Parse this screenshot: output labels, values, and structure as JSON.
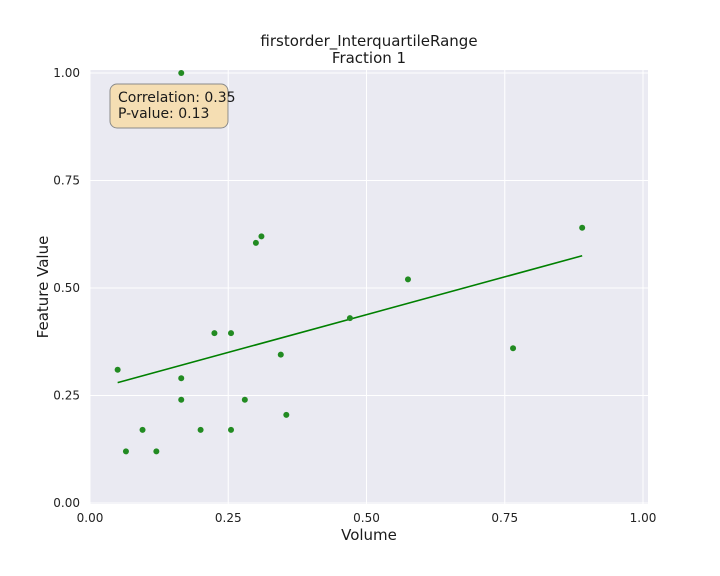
{
  "chart_data": {
    "type": "scatter",
    "title": "firstorder_InterquartileRange",
    "subtitle": "Fraction 1",
    "xlabel": "Volume",
    "ylabel": "Feature Value",
    "xlim": [
      0.0,
      1.0
    ],
    "ylim": [
      0.0,
      1.0
    ],
    "x_ticks": [
      "0.00",
      "0.25",
      "0.50",
      "0.75",
      "1.00"
    ],
    "y_ticks": [
      "0.00",
      "0.25",
      "0.50",
      "0.75",
      "1.00"
    ],
    "grid": true,
    "point_color": "#228B22",
    "line_color": "#008000",
    "background_color": "#EAEAF2",
    "points": [
      {
        "x": 0.05,
        "y": 0.31
      },
      {
        "x": 0.065,
        "y": 0.12
      },
      {
        "x": 0.095,
        "y": 0.17
      },
      {
        "x": 0.12,
        "y": 0.12
      },
      {
        "x": 0.165,
        "y": 1.0
      },
      {
        "x": 0.165,
        "y": 0.29
      },
      {
        "x": 0.165,
        "y": 0.24
      },
      {
        "x": 0.2,
        "y": 0.17
      },
      {
        "x": 0.225,
        "y": 0.395
      },
      {
        "x": 0.255,
        "y": 0.395
      },
      {
        "x": 0.255,
        "y": 0.17
      },
      {
        "x": 0.28,
        "y": 0.24
      },
      {
        "x": 0.3,
        "y": 0.605
      },
      {
        "x": 0.31,
        "y": 0.62
      },
      {
        "x": 0.345,
        "y": 0.345
      },
      {
        "x": 0.355,
        "y": 0.205
      },
      {
        "x": 0.47,
        "y": 0.43
      },
      {
        "x": 0.575,
        "y": 0.52
      },
      {
        "x": 0.765,
        "y": 0.36
      },
      {
        "x": 0.89,
        "y": 0.64
      }
    ],
    "regression_line": {
      "x": [
        0.05,
        0.89
      ],
      "y": [
        0.28,
        0.575
      ]
    },
    "annotation": {
      "line1": "Correlation: 0.35",
      "line2": "P-value: 0.13",
      "fill": "#F5DEB3",
      "placement": "top-left"
    }
  }
}
